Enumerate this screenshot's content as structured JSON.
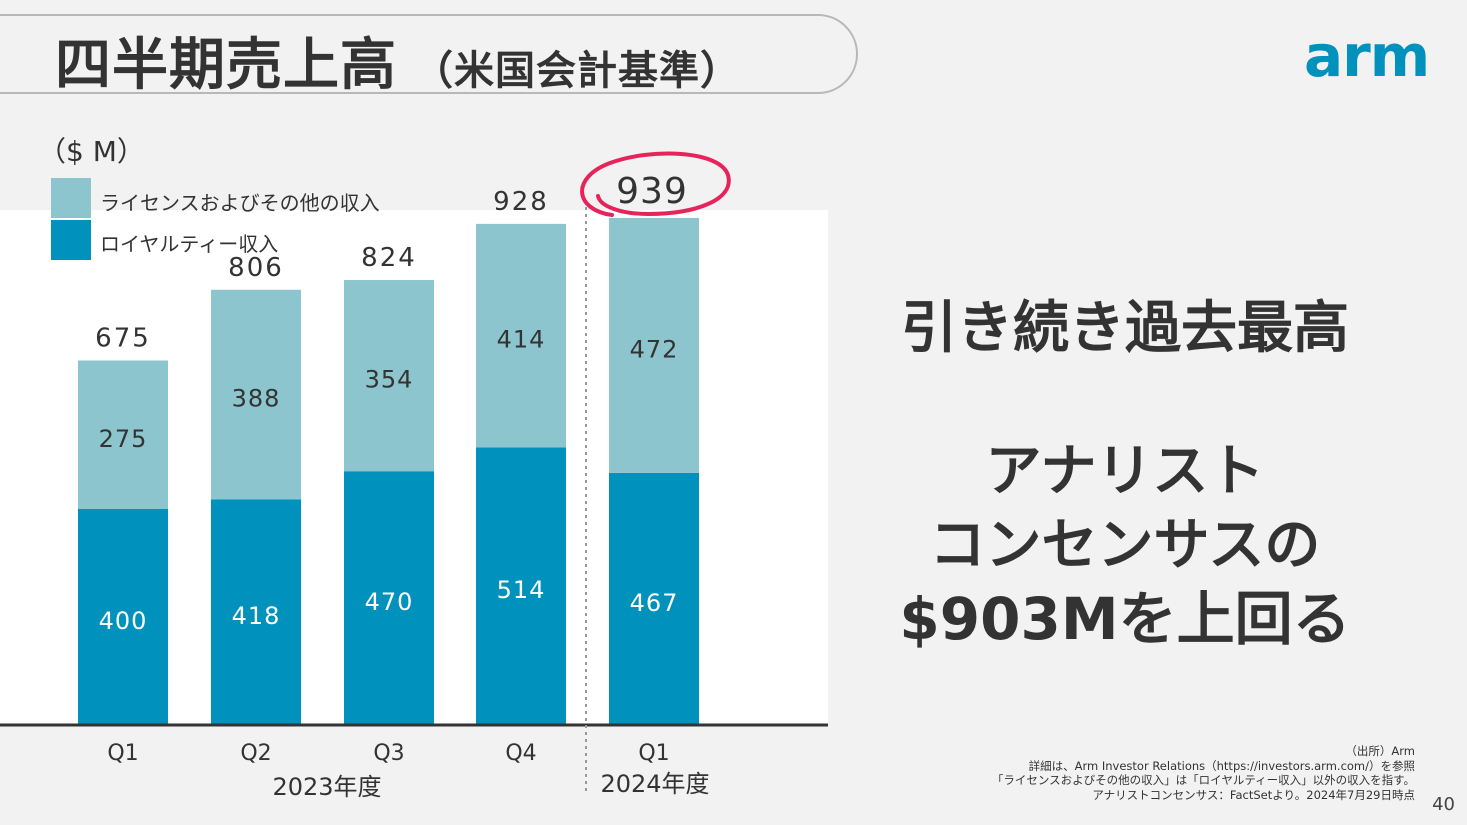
{
  "slide": {
    "title": "四半期売上高",
    "title_sub": "（米国会計基準）",
    "logo": "arm",
    "page_number": "40"
  },
  "chart_data": {
    "type": "bar",
    "stacked": true,
    "unit_label": "（$ M）",
    "categories": [
      "Q1",
      "Q2",
      "Q3",
      "Q4",
      "Q1"
    ],
    "group_labels": [
      "2023年度",
      "2024年度"
    ],
    "series": [
      {
        "name": "ロイヤルティー収入",
        "color": "#0091bd",
        "values": [
          400,
          418,
          470,
          514,
          467
        ]
      },
      {
        "name": "ライセンスおよびその他の収入",
        "color": "#8cc5cd",
        "values": [
          275,
          388,
          354,
          414,
          472
        ]
      }
    ],
    "totals": [
      675,
      806,
      824,
      928,
      939
    ],
    "highlight_total_index": 4,
    "highlight_color": "#e6245b",
    "ylim": [
      0,
      1000
    ],
    "grid": false
  },
  "callout": {
    "line1": "引き続き過去最高",
    "line2": "アナリスト",
    "line3": "コンセンサスの",
    "line4": "$903Mを上回る"
  },
  "notes": {
    "line1": "（出所）Arm",
    "line2": "詳細は、Arm Investor Relations（https://investors.arm.com/）を参照",
    "line3": "「ライセンスおよびその他の収入」は「ロイヤルティー収入」以外の収入を指す。",
    "line4": "アナリストコンセンサス：FactSetより。2024年7月29日時点"
  }
}
